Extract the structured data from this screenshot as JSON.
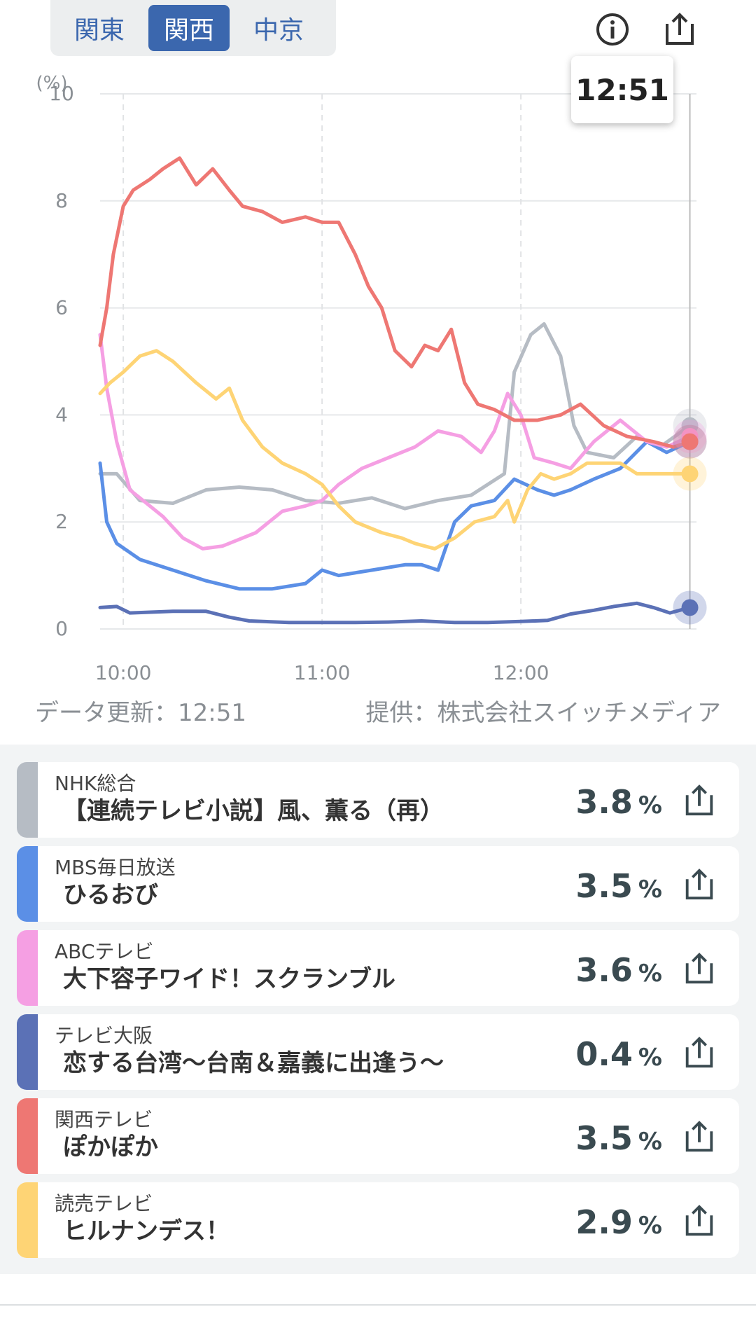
{
  "region_tabs": [
    {
      "label": "関東",
      "active": false
    },
    {
      "label": "関西",
      "active": true
    },
    {
      "label": "中京",
      "active": false
    }
  ],
  "icons": {
    "info": "info-icon",
    "share": "share-icon"
  },
  "tooltip_time": "12:51",
  "chart_data": {
    "type": "line",
    "ylabel": "(%)",
    "ylim": [
      0,
      10
    ],
    "y_ticks": [
      "0",
      "2",
      "4",
      "6",
      "8",
      "10"
    ],
    "x_ticks": [
      "10:00",
      "11:00",
      "12:00"
    ],
    "x_range": [
      "09:53",
      "12:53"
    ],
    "grid": true,
    "cursor_time": "12:51",
    "series": [
      {
        "name": "NHK総合",
        "color": "#b6bcc4",
        "points": [
          [
            "09:53",
            2.9
          ],
          [
            "09:58",
            2.9
          ],
          [
            "10:05",
            2.4
          ],
          [
            "10:15",
            2.35
          ],
          [
            "10:25",
            2.6
          ],
          [
            "10:35",
            2.65
          ],
          [
            "10:45",
            2.6
          ],
          [
            "10:55",
            2.4
          ],
          [
            "11:05",
            2.35
          ],
          [
            "11:15",
            2.45
          ],
          [
            "11:25",
            2.25
          ],
          [
            "11:35",
            2.4
          ],
          [
            "11:45",
            2.5
          ],
          [
            "11:55",
            2.9
          ],
          [
            "11:58",
            4.8
          ],
          [
            "12:03",
            5.5
          ],
          [
            "12:07",
            5.7
          ],
          [
            "12:12",
            5.1
          ],
          [
            "12:16",
            3.8
          ],
          [
            "12:20",
            3.3
          ],
          [
            "12:28",
            3.2
          ],
          [
            "12:35",
            3.6
          ],
          [
            "12:42",
            3.4
          ],
          [
            "12:51",
            3.8
          ]
        ]
      },
      {
        "name": "MBS毎日放送",
        "color": "#5b8fe6",
        "points": [
          [
            "09:53",
            3.1
          ],
          [
            "09:55",
            2.0
          ],
          [
            "09:58",
            1.6
          ],
          [
            "10:05",
            1.3
          ],
          [
            "10:15",
            1.1
          ],
          [
            "10:25",
            0.9
          ],
          [
            "10:35",
            0.75
          ],
          [
            "10:45",
            0.75
          ],
          [
            "10:55",
            0.85
          ],
          [
            "11:00",
            1.1
          ],
          [
            "11:05",
            1.0
          ],
          [
            "11:15",
            1.1
          ],
          [
            "11:25",
            1.2
          ],
          [
            "11:30",
            1.2
          ],
          [
            "11:35",
            1.1
          ],
          [
            "11:40",
            2.0
          ],
          [
            "11:45",
            2.3
          ],
          [
            "11:52",
            2.4
          ],
          [
            "11:58",
            2.8
          ],
          [
            "12:05",
            2.6
          ],
          [
            "12:10",
            2.5
          ],
          [
            "12:15",
            2.6
          ],
          [
            "12:22",
            2.8
          ],
          [
            "12:30",
            3.0
          ],
          [
            "12:38",
            3.5
          ],
          [
            "12:44",
            3.3
          ],
          [
            "12:51",
            3.5
          ]
        ]
      },
      {
        "name": "ABCテレビ",
        "color": "#f59fe3",
        "points": [
          [
            "09:53",
            5.5
          ],
          [
            "09:55",
            4.5
          ],
          [
            "09:58",
            3.5
          ],
          [
            "10:02",
            2.6
          ],
          [
            "10:08",
            2.3
          ],
          [
            "10:12",
            2.1
          ],
          [
            "10:18",
            1.7
          ],
          [
            "10:24",
            1.5
          ],
          [
            "10:30",
            1.55
          ],
          [
            "10:40",
            1.8
          ],
          [
            "10:48",
            2.2
          ],
          [
            "10:55",
            2.3
          ],
          [
            "11:00",
            2.4
          ],
          [
            "11:05",
            2.7
          ],
          [
            "11:12",
            3.0
          ],
          [
            "11:20",
            3.2
          ],
          [
            "11:28",
            3.4
          ],
          [
            "11:35",
            3.7
          ],
          [
            "11:42",
            3.6
          ],
          [
            "11:48",
            3.3
          ],
          [
            "11:52",
            3.7
          ],
          [
            "11:56",
            4.4
          ],
          [
            "12:00",
            4.0
          ],
          [
            "12:04",
            3.2
          ],
          [
            "12:10",
            3.1
          ],
          [
            "12:15",
            3.0
          ],
          [
            "12:22",
            3.5
          ],
          [
            "12:30",
            3.9
          ],
          [
            "12:38",
            3.5
          ],
          [
            "12:44",
            3.4
          ],
          [
            "12:51",
            3.6
          ]
        ]
      },
      {
        "name": "テレビ大阪",
        "color": "#5b71b6",
        "points": [
          [
            "09:53",
            0.4
          ],
          [
            "09:58",
            0.42
          ],
          [
            "10:02",
            0.3
          ],
          [
            "10:15",
            0.33
          ],
          [
            "10:25",
            0.33
          ],
          [
            "10:32",
            0.22
          ],
          [
            "10:38",
            0.15
          ],
          [
            "10:50",
            0.12
          ],
          [
            "11:00",
            0.12
          ],
          [
            "11:10",
            0.12
          ],
          [
            "11:20",
            0.13
          ],
          [
            "11:30",
            0.15
          ],
          [
            "11:40",
            0.12
          ],
          [
            "11:50",
            0.12
          ],
          [
            "12:00",
            0.14
          ],
          [
            "12:08",
            0.16
          ],
          [
            "12:15",
            0.28
          ],
          [
            "12:22",
            0.35
          ],
          [
            "12:28",
            0.42
          ],
          [
            "12:35",
            0.48
          ],
          [
            "12:40",
            0.4
          ],
          [
            "12:45",
            0.3
          ],
          [
            "12:51",
            0.4
          ]
        ]
      },
      {
        "name": "関西テレビ",
        "color": "#ee7773",
        "points": [
          [
            "09:53",
            5.3
          ],
          [
            "09:55",
            6.0
          ],
          [
            "09:57",
            7.0
          ],
          [
            "10:00",
            7.9
          ],
          [
            "10:03",
            8.2
          ],
          [
            "10:08",
            8.4
          ],
          [
            "10:12",
            8.6
          ],
          [
            "10:17",
            8.8
          ],
          [
            "10:22",
            8.3
          ],
          [
            "10:27",
            8.6
          ],
          [
            "10:32",
            8.2
          ],
          [
            "10:36",
            7.9
          ],
          [
            "10:42",
            7.8
          ],
          [
            "10:48",
            7.6
          ],
          [
            "10:55",
            7.7
          ],
          [
            "11:00",
            7.6
          ],
          [
            "11:05",
            7.6
          ],
          [
            "11:10",
            7.0
          ],
          [
            "11:14",
            6.4
          ],
          [
            "11:18",
            6.0
          ],
          [
            "11:22",
            5.2
          ],
          [
            "11:27",
            4.9
          ],
          [
            "11:31",
            5.3
          ],
          [
            "11:35",
            5.2
          ],
          [
            "11:39",
            5.6
          ],
          [
            "11:43",
            4.6
          ],
          [
            "11:47",
            4.2
          ],
          [
            "11:52",
            4.1
          ],
          [
            "11:58",
            3.9
          ],
          [
            "12:05",
            3.9
          ],
          [
            "12:12",
            4.0
          ],
          [
            "12:18",
            4.2
          ],
          [
            "12:25",
            3.8
          ],
          [
            "12:32",
            3.6
          ],
          [
            "12:40",
            3.5
          ],
          [
            "12:46",
            3.4
          ],
          [
            "12:51",
            3.5
          ]
        ]
      },
      {
        "name": "読売テレビ",
        "color": "#fed475",
        "points": [
          [
            "09:53",
            4.4
          ],
          [
            "09:56",
            4.6
          ],
          [
            "10:00",
            4.8
          ],
          [
            "10:05",
            5.1
          ],
          [
            "10:10",
            5.2
          ],
          [
            "10:15",
            5.0
          ],
          [
            "10:22",
            4.6
          ],
          [
            "10:28",
            4.3
          ],
          [
            "10:32",
            4.5
          ],
          [
            "10:36",
            3.9
          ],
          [
            "10:42",
            3.4
          ],
          [
            "10:48",
            3.1
          ],
          [
            "10:55",
            2.9
          ],
          [
            "11:00",
            2.7
          ],
          [
            "11:05",
            2.3
          ],
          [
            "11:10",
            2.0
          ],
          [
            "11:18",
            1.8
          ],
          [
            "11:24",
            1.7
          ],
          [
            "11:28",
            1.6
          ],
          [
            "11:34",
            1.5
          ],
          [
            "11:40",
            1.7
          ],
          [
            "11:46",
            2.0
          ],
          [
            "11:52",
            2.1
          ],
          [
            "11:56",
            2.4
          ],
          [
            "11:58",
            2.0
          ],
          [
            "12:02",
            2.6
          ],
          [
            "12:06",
            2.9
          ],
          [
            "12:10",
            2.8
          ],
          [
            "12:15",
            2.9
          ],
          [
            "12:20",
            3.1
          ],
          [
            "12:25",
            3.1
          ],
          [
            "12:30",
            3.1
          ],
          [
            "12:35",
            2.9
          ],
          [
            "12:40",
            2.9
          ],
          [
            "12:45",
            2.9
          ],
          [
            "12:51",
            2.9
          ]
        ]
      }
    ]
  },
  "data_update": "データ更新：12:51",
  "provider": "提供：株式会社スイッチメディア",
  "channels": [
    {
      "name": "NHK総合",
      "program": "【連続テレビ小説】風、薫る（再）",
      "rating": "3.8",
      "unit": "%",
      "color": "#b6bcc4"
    },
    {
      "name": "MBS毎日放送",
      "program": "ひるおび",
      "rating": "3.5",
      "unit": "%",
      "color": "#5b8fe6"
    },
    {
      "name": "ABCテレビ",
      "program": "大下容子ワイド！スクランブル",
      "rating": "3.6",
      "unit": "%",
      "color": "#f59fe3"
    },
    {
      "name": "テレビ大阪",
      "program": "恋する台湾〜台南＆嘉義に出逢う〜",
      "rating": "0.4",
      "unit": "%",
      "color": "#5b71b6"
    },
    {
      "name": "関西テレビ",
      "program": "ぽかぽか",
      "rating": "3.5",
      "unit": "%",
      "color": "#ee7773"
    },
    {
      "name": "読売テレビ",
      "program": "ヒルナンデス！",
      "rating": "2.9",
      "unit": "%",
      "color": "#fed475"
    }
  ]
}
